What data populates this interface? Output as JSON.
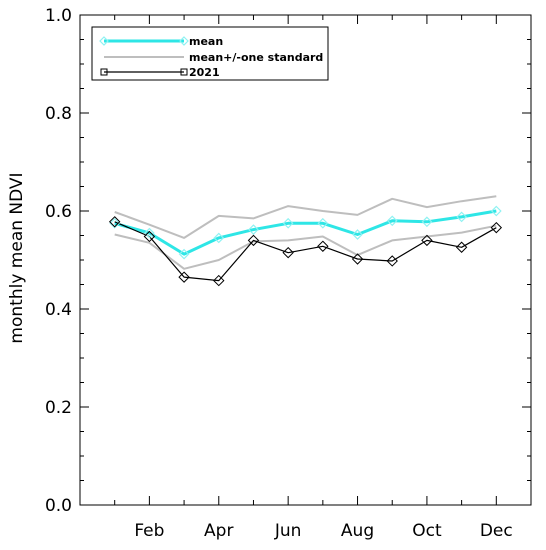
{
  "chart_data": {
    "type": "line",
    "title": "",
    "xlabel": "",
    "ylabel": "monthly mean NDVI",
    "ylim": [
      0.0,
      1.0
    ],
    "xlim": [
      0,
      13
    ],
    "yticks": [
      "0.0",
      "0.2",
      "0.4",
      "0.6",
      "0.8",
      "1.0"
    ],
    "y_tick_values": [
      0.0,
      0.2,
      0.4,
      0.6,
      0.8,
      1.0
    ],
    "xticks": [
      "Feb",
      "Apr",
      "Jun",
      "Aug",
      "Oct",
      "Dec"
    ],
    "x_tick_values": [
      2,
      4,
      6,
      8,
      10,
      12
    ],
    "x": [
      1,
      2,
      3,
      4,
      5,
      6,
      7,
      8,
      9,
      10,
      11,
      12
    ],
    "grid": false,
    "legend_position": "top-left",
    "series": [
      {
        "name": "mean",
        "color": "#2ee6e6",
        "marker": "diamond",
        "values": [
          0.575,
          0.555,
          0.512,
          0.545,
          0.562,
          0.575,
          0.575,
          0.552,
          0.58,
          0.578,
          0.588,
          0.6
        ]
      },
      {
        "name": "mean+/-one standard",
        "color": "#bebebe",
        "marker": "none",
        "values": [
          0.598,
          0.572,
          0.545,
          0.59,
          0.585,
          0.61,
          0.6,
          0.592,
          0.625,
          0.608,
          0.62,
          0.63
        ]
      },
      {
        "name": "",
        "color": "#bebebe",
        "marker": "none",
        "values": [
          0.552,
          0.535,
          0.482,
          0.5,
          0.538,
          0.54,
          0.548,
          0.51,
          0.54,
          0.548,
          0.556,
          0.57
        ]
      },
      {
        "name": "2021",
        "color": "#000000",
        "marker": "diamond",
        "values": [
          0.578,
          0.548,
          0.465,
          0.458,
          0.54,
          0.515,
          0.528,
          0.502,
          0.498,
          0.54,
          0.526,
          0.566
        ]
      }
    ]
  }
}
